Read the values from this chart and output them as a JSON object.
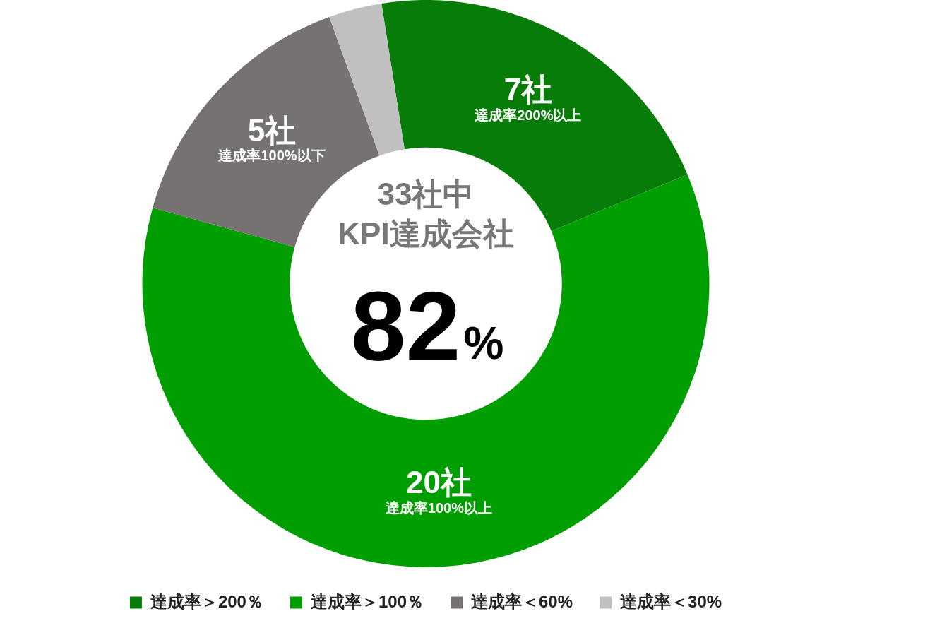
{
  "chart_data": {
    "type": "donut",
    "categories": [
      "達成率＞200％",
      "達成率＞100％",
      "達成率＜60%",
      "達成率＜30%"
    ],
    "values": [
      7,
      20,
      5,
      1
    ],
    "colors": [
      "#087c08",
      "#009e00",
      "#767272",
      "#c0c0c0"
    ],
    "value_labels": [
      "7社",
      "20社",
      "5社",
      null
    ],
    "legend": "bottom",
    "annotations": [
      {
        "text": "達成率200%以上",
        "x": "達成率＞200％"
      },
      {
        "text": "達成率100%以上",
        "x": "達成率＞100％"
      },
      {
        "text": "達成率100%以下",
        "x": "達成率＜60%"
      },
      "33社中",
      "KPI達成会社",
      "82%"
    ]
  }
}
